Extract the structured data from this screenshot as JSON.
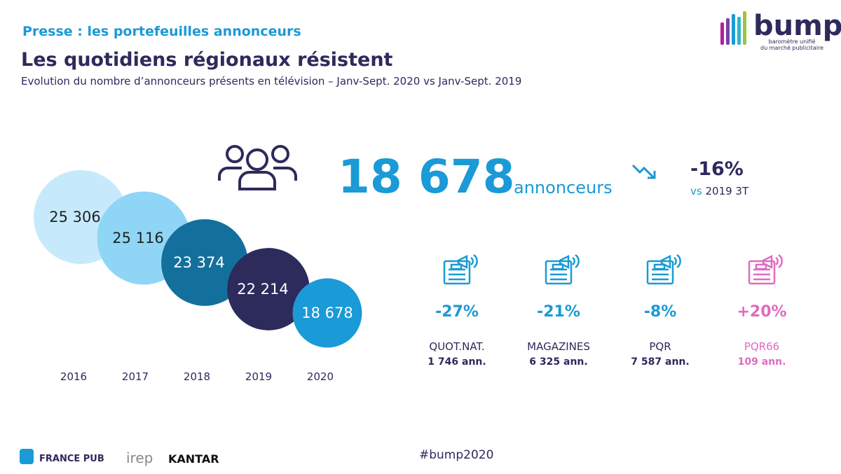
{
  "header": {
    "kicker": "Presse : les portefeuilles annonceurs",
    "title": "Les quotidiens régionaux résistent",
    "subtitle": "Evolution du nombre d’annonceurs présents en télévision – Janv-Sept. 2020 vs Janv-Sept. 2019"
  },
  "logo": {
    "name": "bump",
    "tagline": [
      "baromètre unifié",
      "du marché publicitaire"
    ]
  },
  "chart_data": {
    "type": "bubble",
    "categories": [
      "2016",
      "2017",
      "2018",
      "2019",
      "2020"
    ],
    "values": [
      25306,
      25116,
      23374,
      22214,
      18678
    ],
    "value_labels": [
      "25 306",
      "25 116",
      "23 374",
      "22 214",
      "18 678"
    ],
    "colors": [
      "#c6eafb",
      "#8fd6f6",
      "#13709d",
      "#2d2a5c",
      "#1a9ad6"
    ]
  },
  "headline": {
    "value": "18 678",
    "unit": "annonceurs",
    "change": "-16%",
    "compare_prefix": "vs",
    "compare": "2019 3T"
  },
  "segments": [
    {
      "change": "-27%",
      "name": "QUOT.NAT.",
      "count": "1 746 ann.",
      "color": "#1a9ad6"
    },
    {
      "change": "-21%",
      "name": "MAGAZINES",
      "count": "6 325 ann.",
      "color": "#1a9ad6"
    },
    {
      "change": "-8%",
      "name": "PQR",
      "count": "7 587 ann.",
      "color": "#1a9ad6"
    },
    {
      "change": "+20%",
      "name": "PQR66",
      "count": "109 ann.",
      "color": "#e06bbf"
    }
  ],
  "footer": {
    "partners": [
      "FRANCE PUB",
      "irep",
      "KANTAR"
    ],
    "hashtag": "#bump2020"
  }
}
